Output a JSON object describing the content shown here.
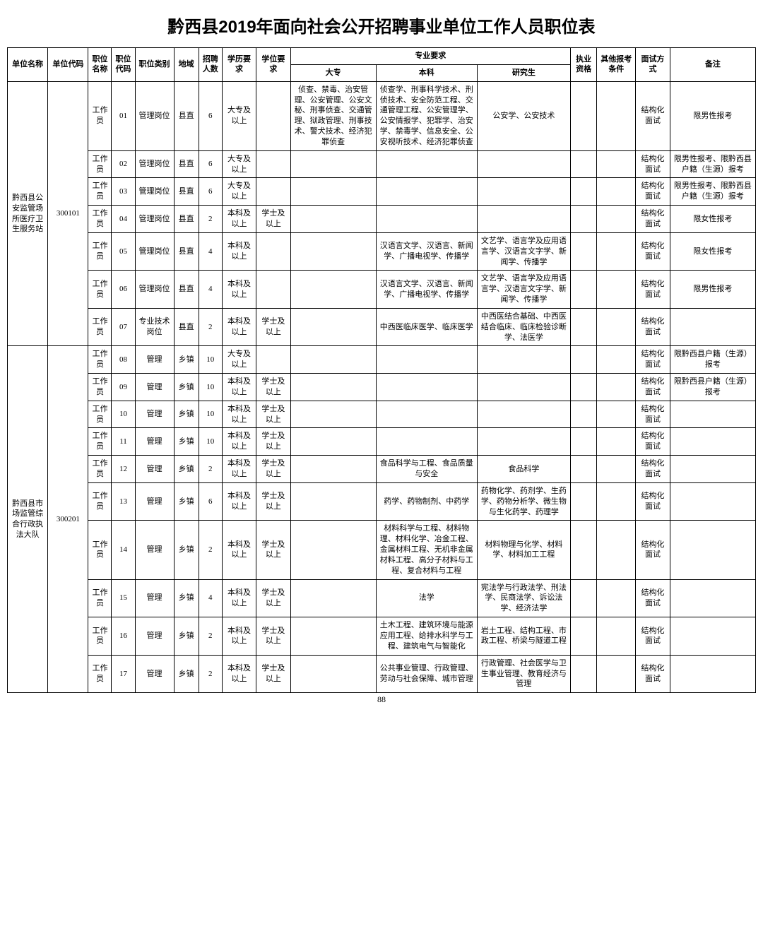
{
  "title": "黔西县2019年面向社会公开招聘事业单位工作人员职位表",
  "footer": "88",
  "headers": {
    "unitName": "单位名称",
    "unitCode": "单位代码",
    "posName": "职位名称",
    "posCode": "职位代码",
    "posType": "职位类别",
    "region": "地域",
    "count": "招聘人数",
    "eduReq": "学历要求",
    "degReq": "学位要求",
    "majorReq": "专业要求",
    "majCollege": "大专",
    "majBachelor": "本科",
    "majGrad": "研究生",
    "license": "执业资格",
    "otherCond": "其他报考条件",
    "interview": "面试方式",
    "remark": "备注"
  },
  "colWidths": {
    "unitName": 52,
    "unitCode": 52,
    "posName": 30,
    "posCode": 30,
    "posType": 50,
    "region": 32,
    "count": 30,
    "eduReq": 44,
    "degReq": 44,
    "majCollege": 110,
    "majBachelor": 130,
    "majGrad": 120,
    "license": 34,
    "otherCond": 50,
    "interview": 44,
    "remark": 110
  },
  "units": [
    {
      "unitName": "黔西县公安监管场所医疗卫生服务站",
      "unitCode": "300101",
      "rows": [
        {
          "posName": "工作员",
          "posCode": "01",
          "posType": "管理岗位",
          "region": "县直",
          "count": "6",
          "eduReq": "大专及以上",
          "degReq": "",
          "majCollege": "侦查、禁毒、治安管理、公安管理、公安文秘、刑事侦查、交通管理、狱政管理、刑事技术、警犬技术、经济犯罪侦查",
          "majBachelor": "侦查学、刑事科学技术、刑侦技术、安全防范工程、交通管理工程、公安管理学、公安情报学、犯罪学、治安学、禁毒学、信息安全、公安视听技术、经济犯罪侦查",
          "majGrad": "公安学、公安技术",
          "license": "",
          "otherCond": "",
          "interview": "结构化面试",
          "remark": "限男性报考"
        },
        {
          "posName": "工作员",
          "posCode": "02",
          "posType": "管理岗位",
          "region": "县直",
          "count": "6",
          "eduReq": "大专及以上",
          "degReq": "",
          "majCollege": "",
          "majBachelor": "",
          "majGrad": "",
          "license": "",
          "otherCond": "",
          "interview": "结构化面试",
          "remark": "限男性报考、限黔西县户籍（生源）报考"
        },
        {
          "posName": "工作员",
          "posCode": "03",
          "posType": "管理岗位",
          "region": "县直",
          "count": "6",
          "eduReq": "大专及以上",
          "degReq": "",
          "majCollege": "",
          "majBachelor": "",
          "majGrad": "",
          "license": "",
          "otherCond": "",
          "interview": "结构化面试",
          "remark": "限男性报考、限黔西县户籍（生源）报考"
        },
        {
          "posName": "工作员",
          "posCode": "04",
          "posType": "管理岗位",
          "region": "县直",
          "count": "2",
          "eduReq": "本科及以上",
          "degReq": "学士及以上",
          "majCollege": "",
          "majBachelor": "",
          "majGrad": "",
          "license": "",
          "otherCond": "",
          "interview": "结构化面试",
          "remark": "限女性报考"
        },
        {
          "posName": "工作员",
          "posCode": "05",
          "posType": "管理岗位",
          "region": "县直",
          "count": "4",
          "eduReq": "本科及以上",
          "degReq": "",
          "majCollege": "",
          "majBachelor": "汉语言文学、汉语言、新闻学、广播电视学、传播学",
          "majGrad": "文艺学、语言学及应用语言学、汉语言文字学、新闻学、传播学",
          "license": "",
          "otherCond": "",
          "interview": "结构化面试",
          "remark": "限女性报考"
        },
        {
          "posName": "工作员",
          "posCode": "06",
          "posType": "管理岗位",
          "region": "县直",
          "count": "4",
          "eduReq": "本科及以上",
          "degReq": "",
          "majCollege": "",
          "majBachelor": "汉语言文学、汉语言、新闻学、广播电视学、传播学",
          "majGrad": "文艺学、语言学及应用语言学、汉语言文字学、新闻学、传播学",
          "license": "",
          "otherCond": "",
          "interview": "结构化面试",
          "remark": "限男性报考"
        },
        {
          "posName": "工作员",
          "posCode": "07",
          "posType": "专业技术岗位",
          "region": "县直",
          "count": "2",
          "eduReq": "本科及以上",
          "degReq": "学士及以上",
          "majCollege": "",
          "majBachelor": "中西医临床医学、临床医学",
          "majGrad": "中西医结合基础、中西医结合临床、临床检验诊断学、法医学",
          "license": "",
          "otherCond": "",
          "interview": "结构化面试",
          "remark": ""
        }
      ]
    },
    {
      "unitName": "黔西县市场监管综合行政执法大队",
      "unitCode": "300201",
      "rows": [
        {
          "posName": "工作员",
          "posCode": "08",
          "posType": "管理",
          "region": "乡镇",
          "count": "10",
          "eduReq": "大专及以上",
          "degReq": "",
          "majCollege": "",
          "majBachelor": "",
          "majGrad": "",
          "license": "",
          "otherCond": "",
          "interview": "结构化面试",
          "remark": "限黔西县户籍（生源）报考"
        },
        {
          "posName": "工作员",
          "posCode": "09",
          "posType": "管理",
          "region": "乡镇",
          "count": "10",
          "eduReq": "本科及以上",
          "degReq": "学士及以上",
          "majCollege": "",
          "majBachelor": "",
          "majGrad": "",
          "license": "",
          "otherCond": "",
          "interview": "结构化面试",
          "remark": "限黔西县户籍（生源）报考"
        },
        {
          "posName": "工作员",
          "posCode": "10",
          "posType": "管理",
          "region": "乡镇",
          "count": "10",
          "eduReq": "本科及以上",
          "degReq": "学士及以上",
          "majCollege": "",
          "majBachelor": "",
          "majGrad": "",
          "license": "",
          "otherCond": "",
          "interview": "结构化面试",
          "remark": ""
        },
        {
          "posName": "工作员",
          "posCode": "11",
          "posType": "管理",
          "region": "乡镇",
          "count": "10",
          "eduReq": "本科及以上",
          "degReq": "学士及以上",
          "majCollege": "",
          "majBachelor": "",
          "majGrad": "",
          "license": "",
          "otherCond": "",
          "interview": "结构化面试",
          "remark": ""
        },
        {
          "posName": "工作员",
          "posCode": "12",
          "posType": "管理",
          "region": "乡镇",
          "count": "2",
          "eduReq": "本科及以上",
          "degReq": "学士及以上",
          "majCollege": "",
          "majBachelor": "食品科学与工程、食品质量与安全",
          "majGrad": "食品科学",
          "license": "",
          "otherCond": "",
          "interview": "结构化面试",
          "remark": ""
        },
        {
          "posName": "工作员",
          "posCode": "13",
          "posType": "管理",
          "region": "乡镇",
          "count": "6",
          "eduReq": "本科及以上",
          "degReq": "学士及以上",
          "majCollege": "",
          "majBachelor": "药学、药物制剂、中药学",
          "majGrad": "药物化学、药剂学、生药学、药物分析学、微生物与生化药学、药理学",
          "license": "",
          "otherCond": "",
          "interview": "结构化面试",
          "remark": ""
        },
        {
          "posName": "工作员",
          "posCode": "14",
          "posType": "管理",
          "region": "乡镇",
          "count": "2",
          "eduReq": "本科及以上",
          "degReq": "学士及以上",
          "majCollege": "",
          "majBachelor": "材料科学与工程、材料物理、材料化学、冶金工程、金属材料工程、无机非金属材料工程、高分子材料与工程、复合材料与工程",
          "majGrad": "材料物理与化学、材料学、材料加工工程",
          "license": "",
          "otherCond": "",
          "interview": "结构化面试",
          "remark": ""
        },
        {
          "posName": "工作员",
          "posCode": "15",
          "posType": "管理",
          "region": "乡镇",
          "count": "4",
          "eduReq": "本科及以上",
          "degReq": "学士及以上",
          "majCollege": "",
          "majBachelor": "法学",
          "majGrad": "宪法学与行政法学、刑法学、民商法学、诉讼法学、经济法学",
          "license": "",
          "otherCond": "",
          "interview": "结构化面试",
          "remark": ""
        },
        {
          "posName": "工作员",
          "posCode": "16",
          "posType": "管理",
          "region": "乡镇",
          "count": "2",
          "eduReq": "本科及以上",
          "degReq": "学士及以上",
          "majCollege": "",
          "majBachelor": "土木工程、建筑环境与能源应用工程、给排水科学与工程、建筑电气与智能化",
          "majGrad": "岩土工程、结构工程、市政工程、桥梁与隧道工程",
          "license": "",
          "otherCond": "",
          "interview": "结构化面试",
          "remark": ""
        },
        {
          "posName": "工作员",
          "posCode": "17",
          "posType": "管理",
          "region": "乡镇",
          "count": "2",
          "eduReq": "本科及以上",
          "degReq": "学士及以上",
          "majCollege": "",
          "majBachelor": "公共事业管理、行政管理、劳动与社会保障、城市管理",
          "majGrad": "行政管理、社会医学与卫生事业管理、教育经济与管理",
          "license": "",
          "otherCond": "",
          "interview": "结构化面试",
          "remark": ""
        }
      ]
    }
  ]
}
